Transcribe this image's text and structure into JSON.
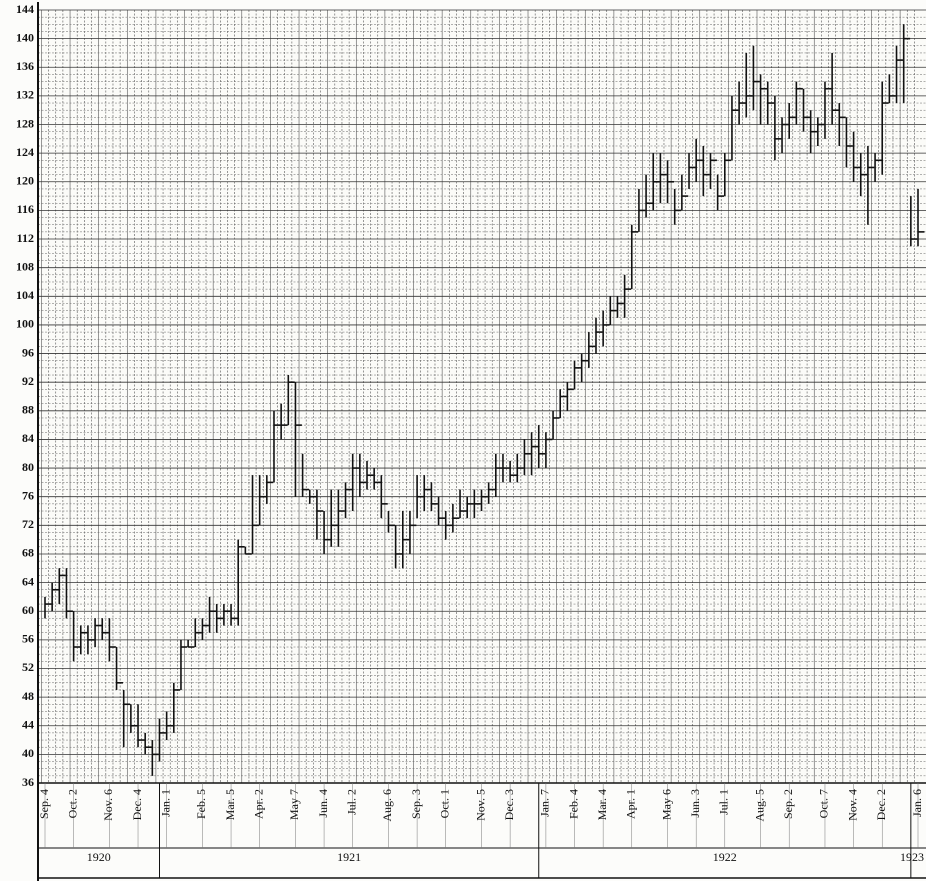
{
  "chart_data": {
    "type": "hlc",
    "color": "#111111",
    "grid": true,
    "ylim": [
      36,
      144
    ],
    "yticks": [
      36,
      40,
      44,
      48,
      52,
      56,
      60,
      64,
      68,
      72,
      76,
      80,
      84,
      88,
      92,
      96,
      100,
      104,
      108,
      112,
      116,
      120,
      124,
      128,
      132,
      136,
      140,
      144
    ],
    "categories": [
      "Sep. 4",
      null,
      null,
      null,
      "Oct. 2",
      null,
      null,
      null,
      null,
      "Nov. 6",
      null,
      null,
      null,
      "Dec. 4",
      null,
      null,
      null,
      "Jan. 1",
      null,
      null,
      null,
      null,
      "Feb. 5",
      null,
      null,
      null,
      "Mar. 5",
      null,
      null,
      null,
      "Apr. 2",
      null,
      null,
      null,
      null,
      "May 7",
      null,
      null,
      null,
      "Jun. 4",
      null,
      null,
      null,
      "Jul. 2",
      null,
      null,
      null,
      null,
      "Aug. 6",
      null,
      null,
      null,
      "Sep. 3",
      null,
      null,
      null,
      "Oct. 1",
      null,
      null,
      null,
      null,
      "Nov. 5",
      null,
      null,
      null,
      "Dec. 3",
      null,
      null,
      null,
      null,
      "Jan. 7",
      null,
      null,
      null,
      "Feb. 4",
      null,
      null,
      null,
      "Mar. 4",
      null,
      null,
      null,
      "Apr. 1",
      null,
      null,
      null,
      null,
      "May 6",
      null,
      null,
      null,
      "Jun. 3",
      null,
      null,
      null,
      "Jul. 1",
      null,
      null,
      null,
      null,
      "Aug. 5",
      null,
      null,
      null,
      "Sep. 2",
      null,
      null,
      null,
      null,
      "Oct. 7",
      null,
      null,
      null,
      "Nov. 4",
      null,
      null,
      null,
      "Dec. 2",
      null,
      null,
      null,
      null,
      "Jan. 6"
    ],
    "years": [
      "1920",
      "1921",
      "1922",
      "1923"
    ],
    "series": [
      {
        "name": "high",
        "values": [
          62,
          64,
          66,
          66,
          60,
          58,
          58,
          59,
          59,
          59,
          55,
          49,
          47,
          47,
          43,
          42,
          45,
          46,
          50,
          56,
          56,
          59,
          59,
          62,
          61,
          61,
          61,
          70,
          69,
          79,
          79,
          79,
          88,
          89,
          93,
          92,
          82,
          77,
          77,
          74,
          77,
          77,
          78,
          82,
          82,
          81,
          80,
          79,
          74,
          72,
          74,
          74,
          79,
          79,
          78,
          76,
          74,
          75,
          77,
          76,
          77,
          77,
          78,
          82,
          82,
          81,
          82,
          84,
          85,
          86,
          85,
          88,
          91,
          92,
          95,
          96,
          99,
          101,
          102,
          104,
          104,
          107,
          114,
          119,
          121,
          124,
          124,
          123,
          119,
          121,
          124,
          126,
          125,
          124,
          121,
          124,
          132,
          134,
          138,
          139,
          135,
          134,
          132,
          129,
          131,
          134,
          133,
          130,
          129,
          134,
          138,
          131,
          129,
          127,
          124,
          125,
          124,
          134,
          135,
          139,
          142,
          118,
          119
        ]
      },
      {
        "name": "low",
        "values": [
          59,
          60,
          61,
          59,
          53,
          54,
          54,
          55,
          56,
          53,
          49,
          41,
          43,
          41,
          40,
          37,
          39,
          42,
          43,
          49,
          55,
          55,
          56,
          57,
          57,
          58,
          58,
          58,
          68,
          68,
          72,
          75,
          78,
          84,
          86,
          76,
          76,
          75,
          70,
          68,
          69,
          69,
          73,
          74,
          76,
          77,
          77,
          73,
          71,
          66,
          66,
          68,
          73,
          74,
          74,
          72,
          70,
          71,
          73,
          73,
          73,
          74,
          75,
          76,
          78,
          78,
          78,
          79,
          79,
          80,
          80,
          84,
          87,
          88,
          91,
          92,
          94,
          96,
          97,
          100,
          101,
          101,
          105,
          113,
          115,
          116,
          117,
          117,
          114,
          116,
          119,
          120,
          118,
          119,
          116,
          118,
          123,
          128,
          129,
          130,
          128,
          128,
          123,
          124,
          126,
          128,
          127,
          124,
          125,
          126,
          128,
          125,
          122,
          120,
          118,
          114,
          120,
          121,
          131,
          131,
          131,
          111,
          111
        ]
      },
      {
        "name": "close",
        "values": [
          61,
          63,
          65,
          60,
          55,
          57,
          56,
          58,
          57,
          55,
          50,
          47,
          44,
          42,
          41,
          40,
          43,
          44,
          49,
          55,
          55,
          57,
          58,
          60,
          59,
          60,
          59,
          69,
          68,
          72,
          76,
          78,
          86,
          86,
          92,
          86,
          77,
          76,
          74,
          70,
          72,
          74,
          77,
          80,
          78,
          79,
          78,
          75,
          72,
          68,
          70,
          72,
          76,
          77,
          75,
          73,
          72,
          73,
          74,
          75,
          75,
          76,
          77,
          80,
          80,
          79,
          80,
          82,
          83,
          82,
          84,
          87,
          90,
          91,
          94,
          95,
          97,
          99,
          100,
          102,
          103,
          105,
          113,
          116,
          117,
          120,
          121,
          120,
          116,
          118,
          122,
          123,
          121,
          123,
          118,
          123,
          130,
          131,
          132,
          134,
          133,
          131,
          126,
          128,
          129,
          133,
          129,
          127,
          128,
          133,
          130,
          129,
          125,
          122,
          121,
          122,
          123,
          131,
          132,
          137,
          140,
          112,
          113
        ]
      }
    ]
  }
}
